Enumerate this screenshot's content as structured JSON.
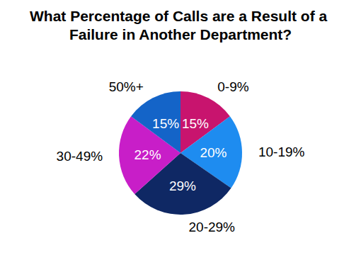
{
  "chart_data": {
    "type": "pie",
    "title": "What Percentage of Calls are a Result of a Failure in Another Department?",
    "categories": [
      "0-9%",
      "10-19%",
      "20-29%",
      "30-49%",
      "50%+"
    ],
    "values": [
      15,
      20,
      29,
      22,
      15
    ],
    "value_labels": [
      "15%",
      "20%",
      "29%",
      "22%",
      "15%"
    ],
    "colors": [
      "#c8146e",
      "#1e8cf0",
      "#0f2864",
      "#c81ec8",
      "#1464c8"
    ],
    "data_labels": true
  }
}
